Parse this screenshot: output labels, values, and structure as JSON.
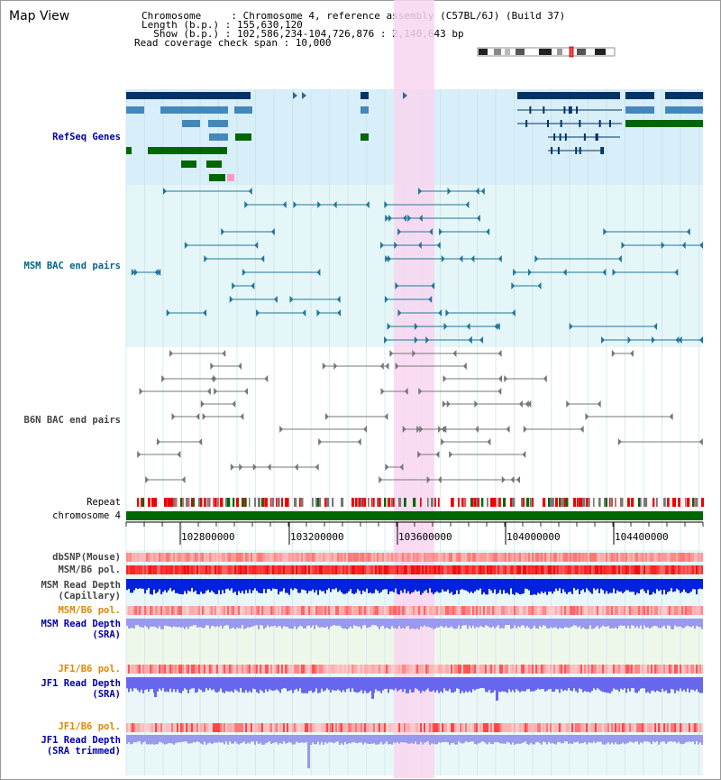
{
  "view_title": "Map View",
  "header": {
    "chromosome": "Chromosome     : Chromosome 4, reference assembly (C57BL/6J) (Build 37)",
    "length": "Length (b.p.) : 155,630,120",
    "show": "  Show (b.p.) : 102,586,234-104,726,876 : 2,140,643 bp",
    "coverage": "Read coverage check span : 10,000"
  },
  "tracks": {
    "refseq": "RefSeq Genes",
    "msm_bac": "MSM BAC end pairs",
    "b6n_bac": "B6N BAC end pairs",
    "repeat": "Repeat",
    "chrom": "chromosome 4",
    "dbsnp": "dbSNP(Mouse)",
    "msm_b6_pol_1": "MSM/B6 pol.",
    "msm_depth_cap_1": "MSM Read Depth",
    "msm_depth_cap_2": "(Capillary)",
    "msm_b6_pol_2": "MSM/B6 pol.",
    "msm_depth_sra_1": "MSM Read Depth",
    "msm_depth_sra_2": "(SRA)",
    "jf1_pol_1": "JF1/B6 pol.",
    "jf1_depth_sra_1": "JF1 Read Depth",
    "jf1_depth_sra_2": "(SRA)",
    "jf1_pol_2": "JF1/B6 pol.",
    "jf1_depth_trim_1": "JF1 Read Depth",
    "jf1_depth_trim_2": "(SRA trimmed)"
  },
  "axis": {
    "ticks": [
      "102800000",
      "103200000",
      "103600000",
      "104000000",
      "104400000"
    ]
  },
  "colors": {
    "refseq_label": "#0000aa",
    "msm_bac_label": "#006688",
    "pol_label_orange": "#dd8800",
    "depth_label_blue": "#0000aa",
    "highlight": "#f7d4f0"
  }
}
